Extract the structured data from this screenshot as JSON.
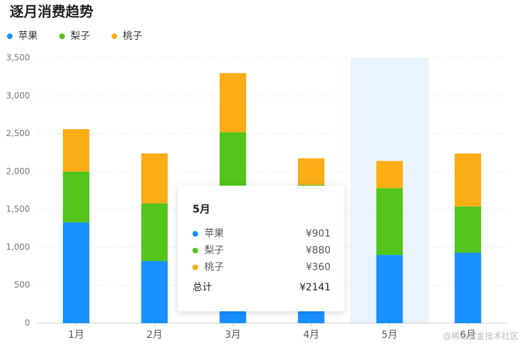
{
  "chart_data": {
    "type": "stacked_bar",
    "title": "逐月消费趋势",
    "categories": [
      "1月",
      "2月",
      "3月",
      "4月",
      "5月",
      "6月"
    ],
    "series": [
      {
        "name": "苹果",
        "color": "#1890ff",
        "values": [
          1330,
          820,
          1200,
          1000,
          901,
          930
        ]
      },
      {
        "name": "梨子",
        "color": "#52c41a",
        "values": [
          670,
          760,
          1320,
          825,
          880,
          610
        ]
      },
      {
        "name": "桃子",
        "color": "#faad14",
        "values": [
          560,
          660,
          780,
          350,
          360,
          700
        ]
      }
    ],
    "ylim": [
      0,
      3500
    ],
    "yticks": [
      0,
      500,
      {
        "value": 1000,
        "label": "1,000"
      },
      {
        "value": 1500,
        "label": "1,500"
      },
      {
        "value": 2000,
        "label": "2,000"
      },
      {
        "value": 2500,
        "label": "2,500"
      },
      {
        "value": 3000,
        "label": "3,000"
      },
      {
        "value": 3500,
        "label": "3,500"
      }
    ],
    "grid": true,
    "legend": "top-left",
    "tooltip": {
      "title": "5月",
      "items": [
        {
          "name": "苹果",
          "value_label": "¥901"
        },
        {
          "name": "梨子",
          "value_label": "¥880"
        },
        {
          "name": "桃子",
          "value_label": "¥360"
        }
      ],
      "total_name": "总计",
      "total_label": "¥2141"
    },
    "watermark": "@稀土掘金技术社区"
  }
}
